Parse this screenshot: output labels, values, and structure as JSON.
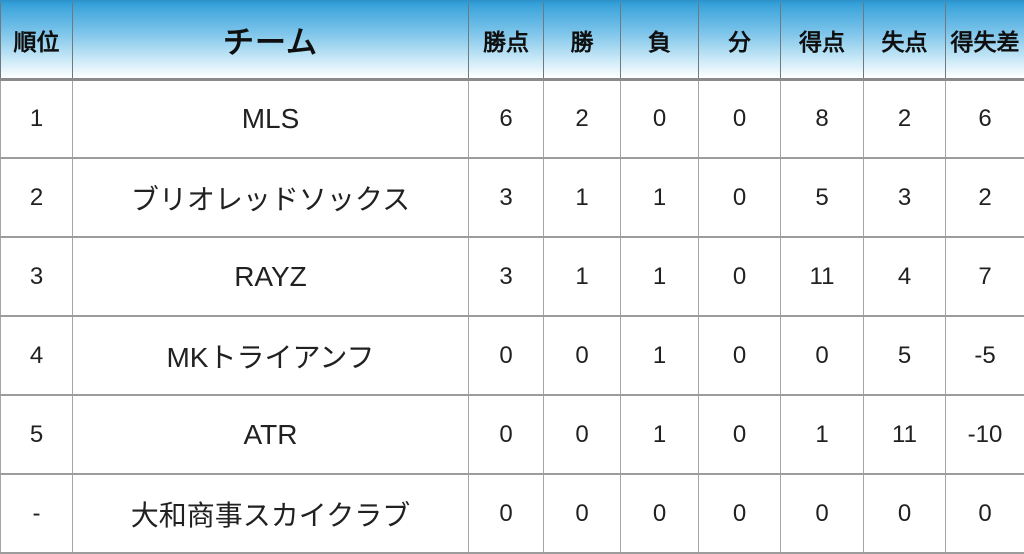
{
  "chart_data": {
    "type": "table",
    "title": "",
    "columns": [
      "順位",
      "チーム",
      "勝点",
      "勝",
      "負",
      "分",
      "得点",
      "失点",
      "得失差"
    ],
    "column_meanings": [
      "rank",
      "team",
      "points",
      "wins",
      "losses",
      "draws",
      "goals-for",
      "goals-against",
      "goal-difference"
    ],
    "rows": [
      [
        "1",
        "MLS",
        "6",
        "2",
        "0",
        "0",
        "8",
        "2",
        "6"
      ],
      [
        "2",
        "ブリオレッドソックス",
        "3",
        "1",
        "1",
        "0",
        "5",
        "3",
        "2"
      ],
      [
        "3",
        "RAYZ",
        "3",
        "1",
        "1",
        "0",
        "11",
        "4",
        "7"
      ],
      [
        "4",
        "MKトライアンフ",
        "0",
        "0",
        "1",
        "0",
        "0",
        "5",
        "-5"
      ],
      [
        "5",
        "ATR",
        "0",
        "0",
        "1",
        "0",
        "1",
        "11",
        "-10"
      ],
      [
        "-",
        "大和商事スカイクラブ",
        "0",
        "0",
        "0",
        "0",
        "0",
        "0",
        "0"
      ]
    ]
  },
  "colors": {
    "header_gradient_top": "#2f9cd6",
    "header_gradient_bottom": "#ffffff",
    "row_background": "#ffffff",
    "grid_border": "#9c9c9c",
    "header_text": "#0f0f0f",
    "body_text": "#212121"
  }
}
